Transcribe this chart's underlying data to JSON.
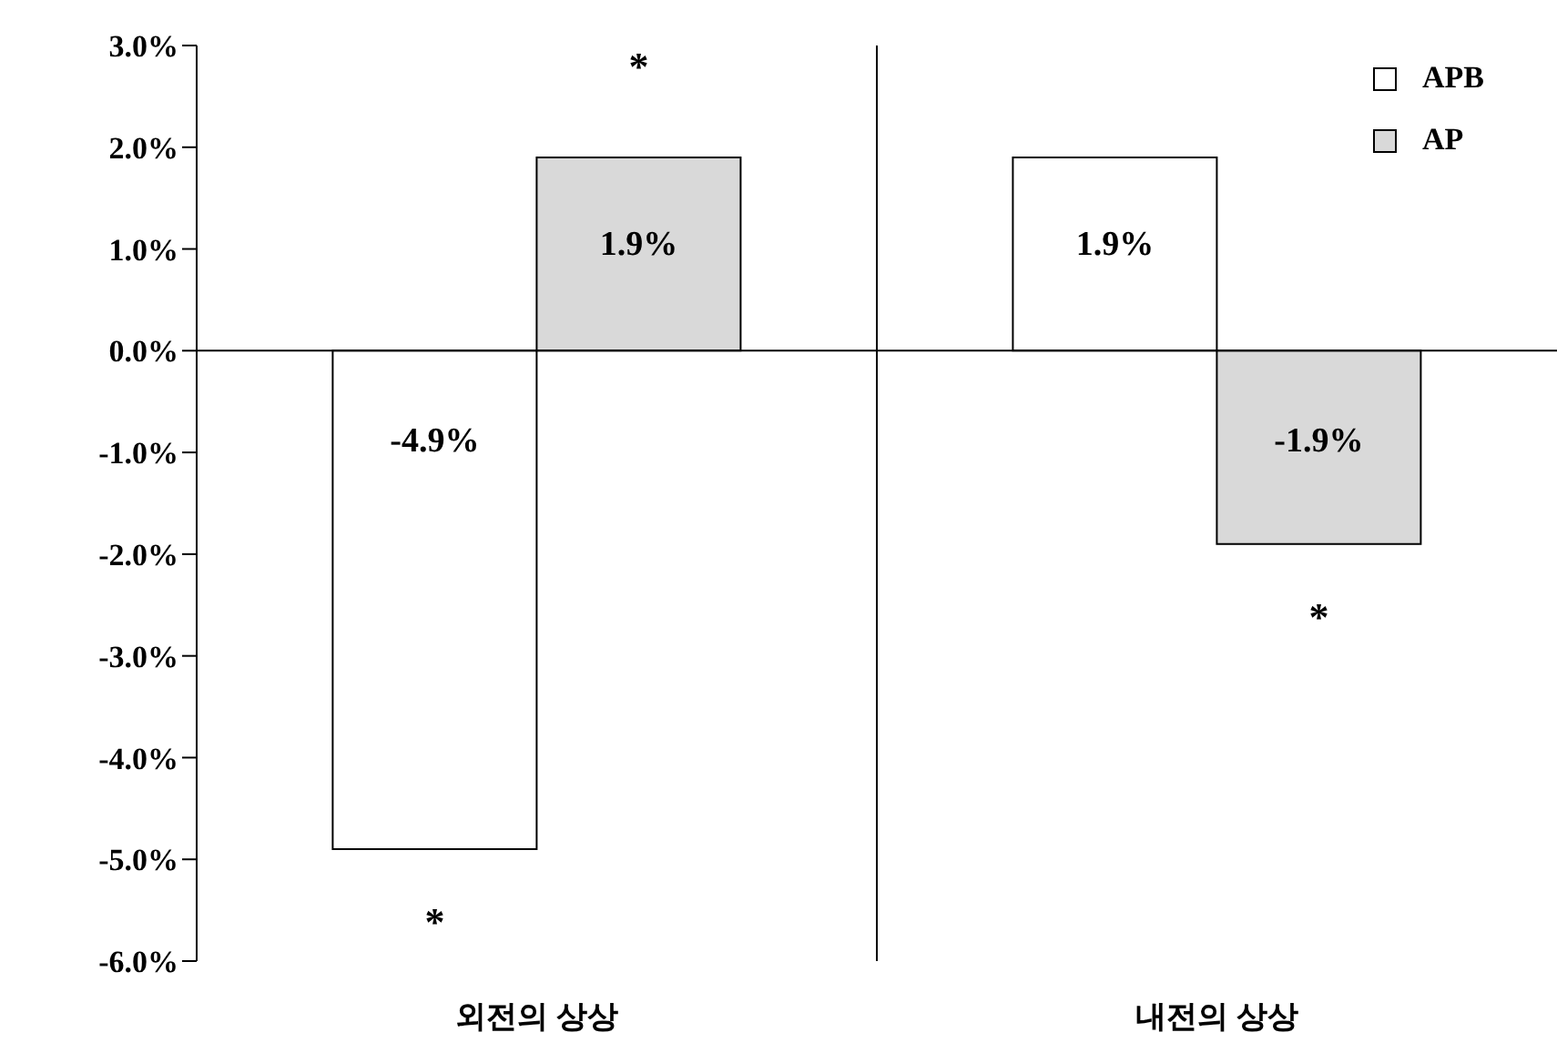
{
  "chart_data": {
    "type": "bar",
    "categories": [
      "외전의 상상",
      "내전의 상상"
    ],
    "series": [
      {
        "name": "APB",
        "color": "#ffffff",
        "values": [
          -4.9,
          1.9
        ],
        "value_labels": [
          "-4.9%",
          "1.9%"
        ]
      },
      {
        "name": "AP",
        "color": "#d9d9d9",
        "values": [
          1.9,
          -1.9
        ],
        "value_labels": [
          "1.9%",
          "-1.9%"
        ]
      }
    ],
    "ylim": [
      -6,
      3
    ],
    "yticks": [
      {
        "value": -6,
        "label": "-6.0%"
      },
      {
        "value": -5,
        "label": "-5.0%"
      },
      {
        "value": -4,
        "label": "-4.0%"
      },
      {
        "value": -3,
        "label": "-3.0%"
      },
      {
        "value": -2,
        "label": "-2.0%"
      },
      {
        "value": -1,
        "label": "-1.0%"
      },
      {
        "value": 0,
        "label": "0.0%"
      },
      {
        "value": 1,
        "label": "1.0%"
      },
      {
        "value": 2,
        "label": "2.0%"
      },
      {
        "value": 3,
        "label": "3.0%"
      }
    ],
    "annotations": [
      {
        "text": "*",
        "x": "외전의 상상",
        "y": -4.9
      },
      {
        "text": "*",
        "x": "외전의 상상",
        "y": 1.9
      },
      {
        "text": "*",
        "x": "내전의 상상",
        "y": -1.9
      }
    ],
    "ref_lines": [
      {
        "axis": "y",
        "value": 0
      }
    ],
    "grid": "x",
    "legend": "top right"
  }
}
